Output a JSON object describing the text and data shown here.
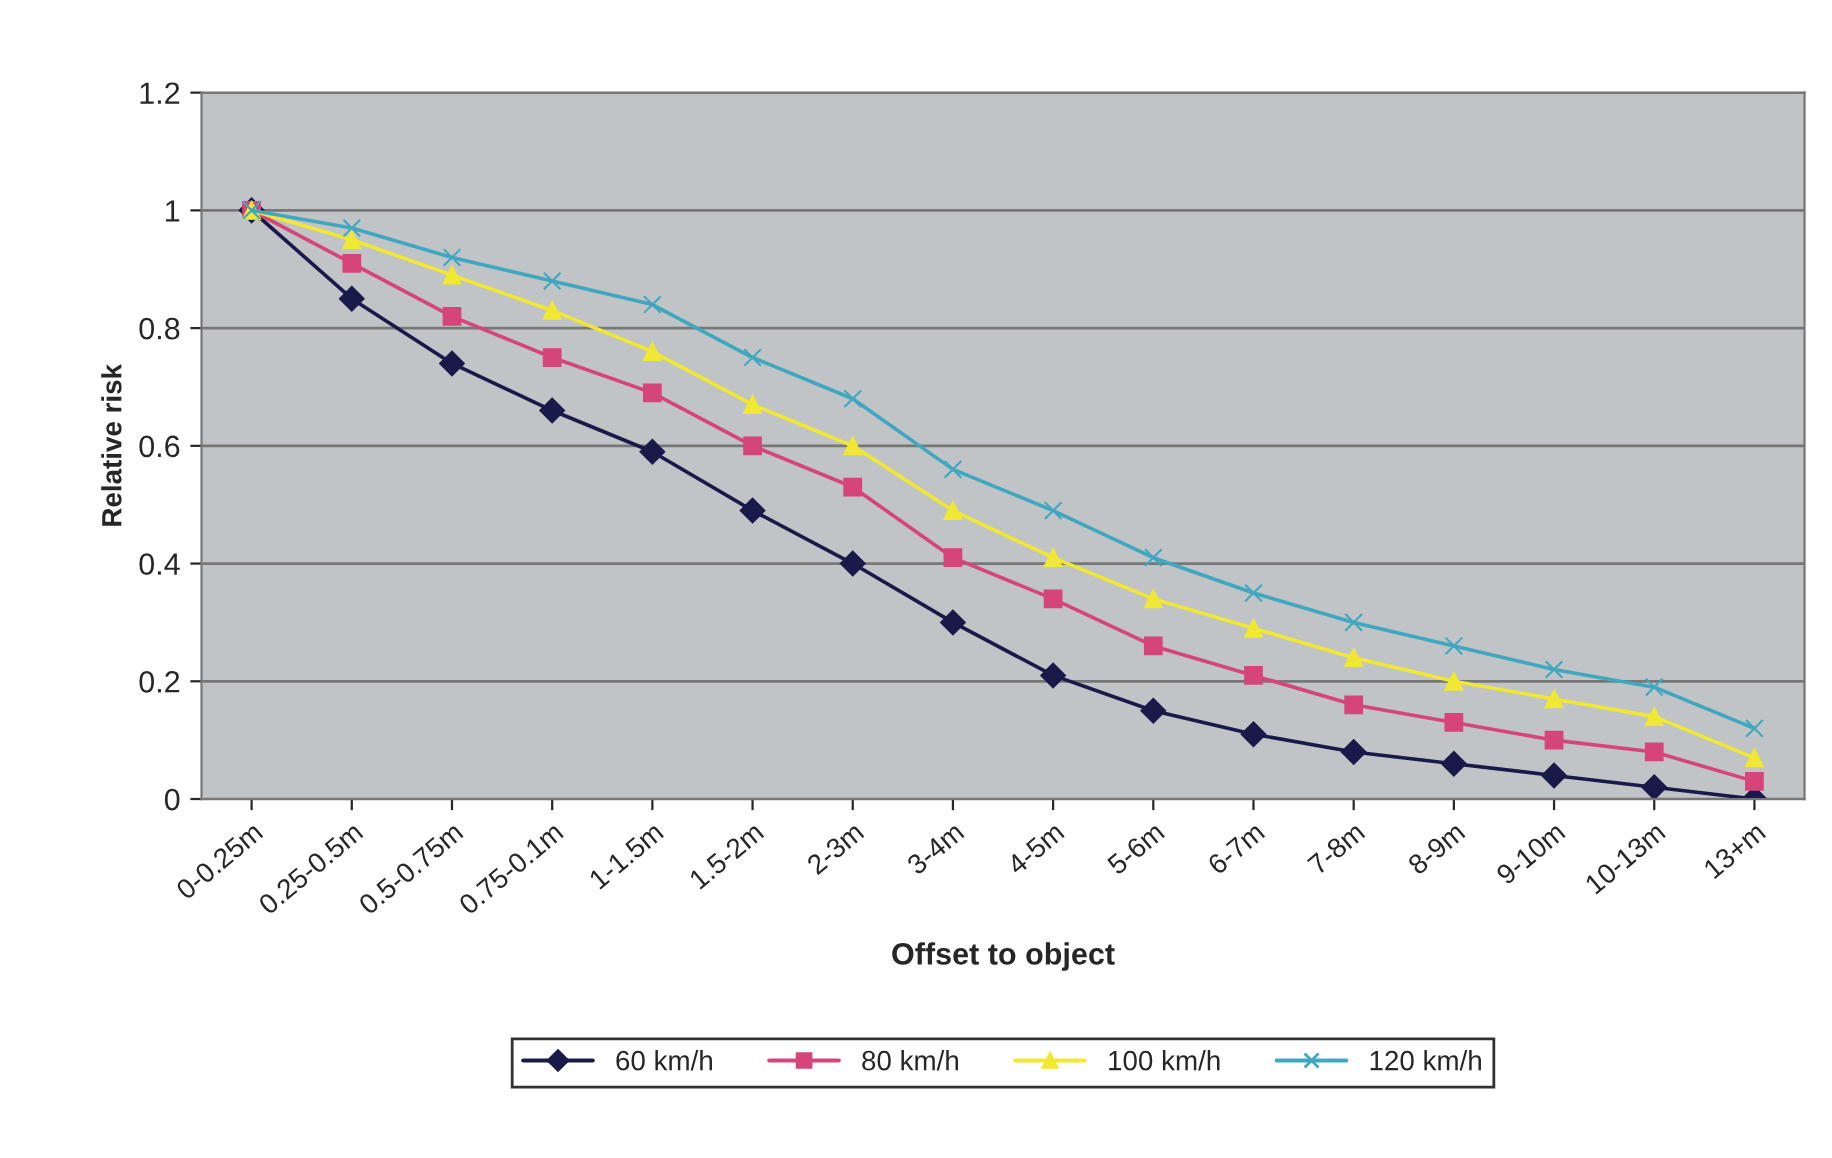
{
  "chart_data": {
    "type": "line",
    "xlabel": "Offset to object",
    "ylabel": "Relative risk",
    "categories": [
      "0-0.25m",
      "0.25-0.5m",
      "0.5-0.75m",
      "0.75-0.1m",
      "1-1.5m",
      "1.5-2m",
      "2-3m",
      "3-4m",
      "4-5m",
      "5-6m",
      "6-7m",
      "7-8m",
      "8-9m",
      "9-10m",
      "10-13m",
      "13+m"
    ],
    "series": [
      {
        "name": "60 km/h",
        "color": "#1a1a4a",
        "marker": "diamond",
        "values": [
          1,
          0.85,
          0.74,
          0.66,
          0.59,
          0.49,
          0.4,
          0.3,
          0.21,
          0.15,
          0.11,
          0.08,
          0.06,
          0.04,
          0.02,
          0.0
        ]
      },
      {
        "name": "80 km/h",
        "color": "#d6457a",
        "marker": "square",
        "values": [
          1,
          0.91,
          0.82,
          0.75,
          0.69,
          0.6,
          0.53,
          0.41,
          0.34,
          0.26,
          0.21,
          0.16,
          0.13,
          0.1,
          0.08,
          0.03
        ]
      },
      {
        "name": "100 km/h",
        "color": "#f0e832",
        "marker": "triangle",
        "values": [
          1,
          0.95,
          0.89,
          0.83,
          0.76,
          0.67,
          0.6,
          0.49,
          0.41,
          0.34,
          0.29,
          0.24,
          0.2,
          0.17,
          0.14,
          0.07
        ]
      },
      {
        "name": "120 km/h",
        "color": "#3fa7c0",
        "marker": "cross",
        "values": [
          1,
          0.97,
          0.92,
          0.88,
          0.84,
          0.75,
          0.68,
          0.56,
          0.49,
          0.41,
          0.35,
          0.3,
          0.26,
          0.22,
          0.19,
          0.12
        ]
      }
    ],
    "ylim": [
      0,
      1.2
    ],
    "yticks": [
      0,
      0.2,
      0.4,
      0.6,
      0.8,
      1,
      1.2
    ],
    "grid": "y",
    "legend": "bottom",
    "line_style": "solid"
  }
}
